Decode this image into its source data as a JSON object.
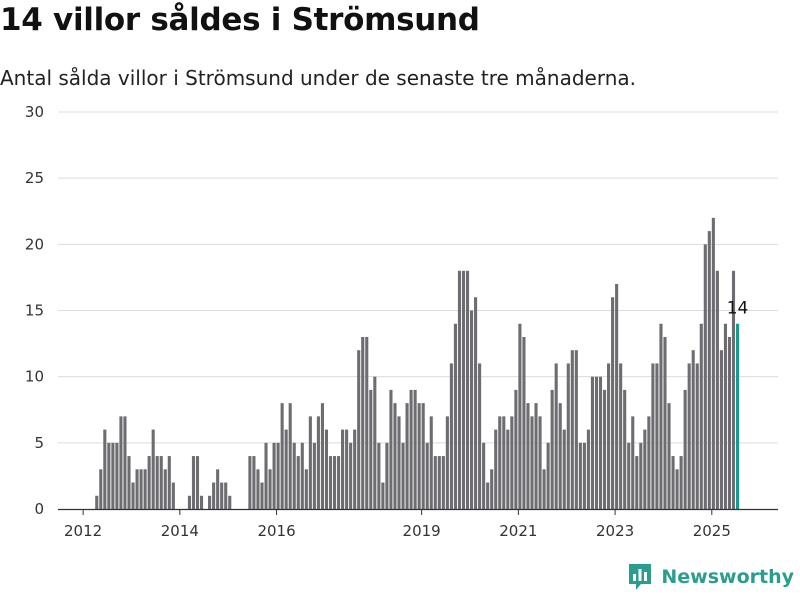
{
  "header": {
    "title": "14 villor såldes i Strömsund",
    "subtitle": "Antal sålda villor i Strömsund under de senaste tre månaderna."
  },
  "brand": {
    "name": "Newsworthy",
    "color": "#2a9d8f"
  },
  "colors": {
    "bar": "#6d6c71",
    "highlight": "#1a9a8f",
    "grid": "#dcdcdc",
    "axis": "#333333"
  },
  "chart_data": {
    "type": "bar",
    "start": "2011-09",
    "x_ticks": [
      "2012",
      "2014",
      "2016",
      "2019",
      "2021",
      "2023",
      "2025"
    ],
    "y_ticks": [
      0,
      5,
      10,
      15,
      20,
      25,
      30
    ],
    "ylim": [
      0,
      30
    ],
    "grid": true,
    "values": [
      0,
      0,
      0,
      0,
      0,
      0,
      0,
      1,
      3,
      6,
      5,
      5,
      5,
      7,
      7,
      4,
      2,
      3,
      3,
      3,
      4,
      6,
      4,
      4,
      3,
      4,
      2,
      0,
      0,
      0,
      1,
      4,
      4,
      1,
      0,
      1,
      2,
      3,
      2,
      2,
      1,
      0,
      0,
      0,
      0,
      4,
      4,
      3,
      2,
      5,
      3,
      5,
      5,
      8,
      6,
      8,
      5,
      4,
      5,
      3,
      7,
      5,
      7,
      8,
      6,
      4,
      4,
      4,
      6,
      6,
      5,
      6,
      12,
      13,
      13,
      9,
      10,
      5,
      2,
      5,
      9,
      8,
      7,
      5,
      8,
      9,
      9,
      8,
      8,
      5,
      7,
      4,
      4,
      4,
      7,
      11,
      14,
      18,
      18,
      18,
      15,
      16,
      11,
      5,
      2,
      3,
      6,
      7,
      7,
      6,
      7,
      9,
      14,
      13,
      8,
      7,
      8,
      7,
      3,
      5,
      9,
      11,
      8,
      6,
      11,
      12,
      12,
      5,
      5,
      6,
      10,
      10,
      10,
      9,
      11,
      16,
      17,
      11,
      9,
      5,
      7,
      4,
      5,
      6,
      7,
      11,
      11,
      14,
      13,
      8,
      4,
      3,
      4,
      9,
      11,
      12,
      11,
      14,
      20,
      21,
      22,
      18,
      12,
      14,
      13,
      18,
      14
    ],
    "highlight_label": "14"
  }
}
